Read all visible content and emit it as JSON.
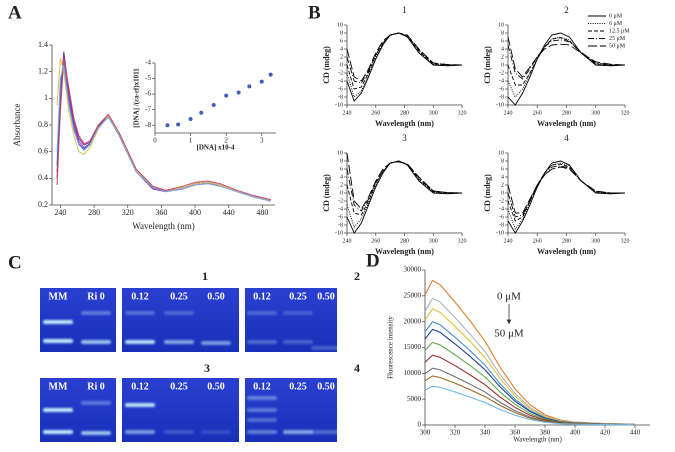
{
  "panel_labels": [
    "A",
    "B",
    "C",
    "D"
  ],
  "chart_data": [
    {
      "type": "line",
      "xlabel": "Wavelength (nm)",
      "ylabel": "Absorbance",
      "x": [
        236,
        240,
        244,
        250,
        256,
        262,
        268,
        275,
        285,
        297,
        310,
        330,
        350,
        365,
        385,
        400,
        415,
        430,
        450,
        470,
        490
      ],
      "xlim": [
        230,
        495
      ],
      "xticks": [
        240,
        280,
        320,
        360,
        400,
        440,
        480
      ],
      "ylim": [
        0.2,
        1.4
      ],
      "yticks": [
        0.2,
        0.4,
        0.6,
        0.8,
        1,
        1.2,
        1.4
      ],
      "series": [
        {
          "color": "#c03cc0",
          "style": "solid",
          "values": [
            0.45,
            1.05,
            1.32,
            1.02,
            0.8,
            0.68,
            0.63,
            0.66,
            0.78,
            0.87,
            0.73,
            0.46,
            0.33,
            0.3,
            0.33,
            0.36,
            0.37,
            0.35,
            0.3,
            0.26,
            0.23
          ]
        },
        {
          "color": "#7a2ea0",
          "style": "solid",
          "values": [
            0.4,
            1.0,
            1.35,
            1.05,
            0.82,
            0.7,
            0.65,
            0.67,
            0.79,
            0.87,
            0.72,
            0.45,
            0.32,
            0.3,
            0.32,
            0.35,
            0.36,
            0.35,
            0.3,
            0.26,
            0.23
          ]
        },
        {
          "color": "#4a5fc8",
          "style": "solid",
          "values": [
            0.5,
            1.1,
            1.28,
            0.98,
            0.78,
            0.66,
            0.62,
            0.66,
            0.78,
            0.86,
            0.72,
            0.45,
            0.33,
            0.31,
            0.33,
            0.36,
            0.37,
            0.35,
            0.3,
            0.26,
            0.23
          ]
        },
        {
          "color": "#d8c458",
          "style": "solid",
          "values": [
            0.95,
            1.3,
            1.2,
            0.9,
            0.72,
            0.6,
            0.58,
            0.63,
            0.77,
            0.87,
            0.73,
            0.46,
            0.34,
            0.31,
            0.33,
            0.36,
            0.37,
            0.35,
            0.3,
            0.26,
            0.23
          ]
        },
        {
          "color": "#c84860",
          "style": "solid",
          "values": [
            0.35,
            0.9,
            1.3,
            1.08,
            0.85,
            0.72,
            0.66,
            0.68,
            0.8,
            0.88,
            0.74,
            0.47,
            0.34,
            0.31,
            0.34,
            0.37,
            0.38,
            0.36,
            0.31,
            0.27,
            0.24
          ]
        },
        {
          "color": "#7fa6e0",
          "style": "solid",
          "values": [
            0.6,
            1.15,
            1.25,
            0.95,
            0.76,
            0.65,
            0.61,
            0.65,
            0.78,
            0.86,
            0.72,
            0.45,
            0.33,
            0.3,
            0.32,
            0.35,
            0.36,
            0.34,
            0.3,
            0.26,
            0.23
          ]
        }
      ]
    },
    {
      "type": "scatter",
      "xlabel": "[DNA] x10-4",
      "ylabel": "[DNA] /(εa-εf)x1011",
      "xlim": [
        0,
        3.4
      ],
      "xticks": [
        0,
        1,
        2,
        3
      ],
      "ylim": [
        -8.5,
        -4
      ],
      "yticks": [
        -8,
        -7,
        -6,
        -5,
        -4
      ],
      "series": [
        {
          "color": "#3f5fb8",
          "x": [
            0.35,
            0.65,
            1.0,
            1.3,
            1.65,
            2.0,
            2.35,
            2.65,
            3.0,
            3.25
          ],
          "values": [
            -8.0,
            -7.95,
            -7.6,
            -7.2,
            -6.7,
            -6.1,
            -5.9,
            -5.5,
            -5.2,
            -4.75
          ]
        }
      ]
    },
    {
      "type": "line",
      "title": "1",
      "xlabel": "Wavelength (nm)",
      "ylabel": "CD (mdeg)",
      "x": [
        240,
        245,
        250,
        255,
        260,
        265,
        270,
        276,
        282,
        290,
        300,
        310,
        320
      ],
      "xlim": [
        240,
        320
      ],
      "xticks": [
        240,
        260,
        280,
        300,
        320
      ],
      "ylim": [
        -10,
        10
      ],
      "yticks": [
        -10,
        -8,
        -6,
        -4,
        -2,
        0,
        2,
        4,
        6,
        8,
        10
      ],
      "legend": false,
      "series": [
        {
          "color": "#000000",
          "style": "solid",
          "values": [
            -4,
            -9,
            -7,
            -3,
            1.5,
            5,
            7.5,
            8,
            7,
            3,
            0,
            -0.2,
            0
          ]
        },
        {
          "color": "#000000",
          "style": "dotted",
          "values": [
            -2,
            -8,
            -6.5,
            -2.5,
            2,
            5.5,
            7.5,
            8,
            7,
            3.2,
            0.2,
            0,
            0
          ]
        },
        {
          "color": "#000000",
          "style": "dashed",
          "values": [
            0,
            -6,
            -5.5,
            -2,
            2.5,
            5.5,
            7.5,
            8,
            7.2,
            3.5,
            0.3,
            0,
            0
          ]
        },
        {
          "color": "#000000",
          "style": "dashdot",
          "values": [
            2,
            -4,
            -4.5,
            -1.5,
            2.5,
            5.5,
            7.5,
            8,
            7.3,
            3.8,
            0.5,
            0.1,
            0
          ]
        },
        {
          "color": "#000000",
          "style": "longdash",
          "values": [
            4,
            -3,
            -4,
            -1,
            3,
            6,
            7.5,
            8,
            7.5,
            4,
            0.5,
            0.1,
            0
          ]
        }
      ]
    },
    {
      "type": "line",
      "title": "2",
      "xlabel": "Wavelength (nm)",
      "ylabel": "CD (mdeg)",
      "x": [
        240,
        245,
        250,
        255,
        260,
        265,
        270,
        276,
        282,
        290,
        300,
        310,
        320
      ],
      "xlim": [
        240,
        320
      ],
      "xticks": [
        240,
        260,
        280,
        300,
        320
      ],
      "ylim": [
        -10,
        10
      ],
      "yticks": [
        -10,
        -8,
        -6,
        -4,
        -2,
        0,
        2,
        4,
        6,
        8,
        10
      ],
      "legend": true,
      "legend_position": "upper right",
      "series": [
        {
          "name": "0 μM",
          "color": "#000000",
          "style": "solid",
          "values": [
            -8,
            -10,
            -7,
            -3,
            1.5,
            5,
            7.5,
            8,
            7,
            3,
            0,
            -0.2,
            0
          ]
        },
        {
          "name": "6 μM",
          "color": "#000000",
          "style": "dotted",
          "values": [
            -4,
            -8,
            -6,
            -2.5,
            1.5,
            4.5,
            6.5,
            7,
            6.2,
            3,
            0.3,
            0,
            0
          ]
        },
        {
          "name": "12.5 μM",
          "color": "#000000",
          "style": "dashed",
          "values": [
            0,
            -5,
            -5,
            -2,
            1.5,
            4.5,
            6.5,
            6.8,
            6,
            3,
            0.3,
            0,
            0
          ]
        },
        {
          "name": "25 μM",
          "color": "#000000",
          "style": "dashdot",
          "values": [
            5,
            -2,
            -3.5,
            -1,
            2,
            4.5,
            6,
            6.3,
            5.8,
            3.2,
            0.5,
            0,
            0
          ]
        },
        {
          "name": "50 μM",
          "color": "#000000",
          "style": "longdash",
          "values": [
            7,
            -1,
            -3,
            -0.5,
            2,
            4,
            5,
            5.2,
            5,
            3,
            0.8,
            0.2,
            0
          ]
        }
      ]
    },
    {
      "type": "line",
      "title": "3",
      "xlabel": "Wavelength (nm)",
      "ylabel": "CD (mdeg)",
      "x": [
        240,
        245,
        250,
        255,
        260,
        265,
        270,
        276,
        282,
        290,
        300,
        310,
        320
      ],
      "xlim": [
        240,
        320
      ],
      "xticks": [
        240,
        260,
        280,
        300,
        320
      ],
      "ylim": [
        -10,
        10
      ],
      "yticks": [
        -10,
        -8,
        -6,
        -4,
        -2,
        0,
        2,
        4,
        6,
        8,
        10
      ],
      "legend": false,
      "series": [
        {
          "color": "#000000",
          "style": "solid",
          "values": [
            -6,
            -10,
            -7.5,
            -3,
            1.5,
            5,
            7.5,
            8,
            7,
            3,
            0,
            -0.2,
            0
          ]
        },
        {
          "color": "#000000",
          "style": "dotted",
          "values": [
            -3,
            -8.5,
            -6.5,
            -2.5,
            2,
            5.5,
            7.5,
            8,
            7,
            3.2,
            0.2,
            0,
            0
          ]
        },
        {
          "color": "#000000",
          "style": "dashed",
          "values": [
            2,
            -5,
            -5.5,
            -2,
            2.5,
            5.5,
            7.5,
            8,
            7.2,
            3.5,
            0.3,
            0,
            0
          ]
        },
        {
          "color": "#000000",
          "style": "dashdot",
          "values": [
            6,
            -3,
            -4.5,
            -1.5,
            2.5,
            5.5,
            7.5,
            7.8,
            7.2,
            3.8,
            0.5,
            0.1,
            0
          ]
        },
        {
          "color": "#000000",
          "style": "longdash",
          "values": [
            10,
            -2,
            -4,
            -1,
            3,
            6,
            7.5,
            7.8,
            7.3,
            4,
            0.5,
            0.1,
            0
          ]
        }
      ]
    },
    {
      "type": "line",
      "title": "4",
      "xlabel": "Wavelength (nm)",
      "ylabel": "CD (mdeg)",
      "x": [
        240,
        245,
        250,
        255,
        260,
        265,
        270,
        276,
        282,
        290,
        300,
        310,
        320
      ],
      "xlim": [
        240,
        320
      ],
      "xticks": [
        240,
        260,
        280,
        300,
        320
      ],
      "ylim": [
        -10,
        10
      ],
      "yticks": [
        -10,
        -8,
        -6,
        -4,
        -2,
        0,
        2,
        4,
        6,
        8,
        10
      ],
      "legend": false,
      "series": [
        {
          "color": "#000000",
          "style": "solid",
          "values": [
            -7,
            -10,
            -7,
            -3,
            1.5,
            5,
            7.5,
            8,
            7,
            3,
            0,
            -0.2,
            0
          ]
        },
        {
          "color": "#000000",
          "style": "dotted",
          "values": [
            -4,
            -9,
            -6.5,
            -2.5,
            1.5,
            5,
            7,
            7.5,
            6.8,
            3,
            0.2,
            0,
            0
          ]
        },
        {
          "color": "#000000",
          "style": "dashed",
          "values": [
            -2,
            -7,
            -6,
            -2,
            2,
            5,
            7,
            7.2,
            6.5,
            3,
            0.3,
            0,
            0
          ]
        },
        {
          "color": "#000000",
          "style": "dashdot",
          "values": [
            0,
            -6,
            -5.5,
            -2,
            2,
            4.5,
            6.5,
            6.8,
            6.2,
            3,
            0.4,
            0,
            0
          ]
        },
        {
          "color": "#000000",
          "style": "longdash",
          "values": [
            2,
            -5,
            -5,
            -1.5,
            2,
            4.5,
            6,
            6.5,
            6,
            3,
            0.5,
            0,
            0
          ]
        }
      ]
    },
    {
      "type": "line",
      "xlabel": "Wavelength (nm)",
      "ylabel": "Fluorescence intensity",
      "annotations": [
        "0 μM",
        "50 μM"
      ],
      "x": [
        300,
        305,
        310,
        320,
        330,
        340,
        350,
        360,
        370,
        380,
        390,
        400,
        420,
        440
      ],
      "xlim": [
        300,
        450
      ],
      "xticks": [
        300,
        320,
        340,
        360,
        380,
        400,
        420,
        440
      ],
      "ylim": [
        0,
        30000
      ],
      "yticks": [
        0,
        5000,
        10000,
        15000,
        20000,
        25000,
        30000
      ],
      "series": [
        {
          "color": "#e07b2a",
          "style": "solid",
          "values": [
            25200,
            28000,
            27160,
            23800,
            20160,
            16240,
            11200,
            7000,
            3920,
            1960,
            980,
            560,
            280,
            140
          ]
        },
        {
          "color": "#a9b4c0",
          "style": "solid",
          "values": [
            22000,
            24500,
            23800,
            20800,
            17600,
            14200,
            9800,
            6100,
            3400,
            1700,
            860,
            490,
            250,
            120
          ]
        },
        {
          "color": "#e8c040",
          "style": "solid",
          "values": [
            20250,
            22500,
            21800,
            19100,
            16200,
            13050,
            9000,
            5600,
            3150,
            1580,
            790,
            450,
            230,
            110
          ]
        },
        {
          "color": "#4a90d0",
          "style": "solid",
          "values": [
            18000,
            20000,
            19400,
            17000,
            14400,
            11600,
            8000,
            5000,
            2800,
            1400,
            700,
            400,
            200,
            100
          ]
        },
        {
          "color": "#1f3f8f",
          "style": "solid",
          "values": [
            16650,
            18500,
            17950,
            15700,
            13300,
            10700,
            7400,
            4600,
            2600,
            1300,
            650,
            370,
            190,
            90
          ]
        },
        {
          "color": "#5fae4a",
          "style": "solid",
          "values": [
            14400,
            16000,
            15500,
            13600,
            11500,
            9300,
            6400,
            4000,
            2240,
            1120,
            560,
            320,
            160,
            80
          ]
        },
        {
          "color": "#9c2f2f",
          "style": "solid",
          "values": [
            12150,
            13500,
            13100,
            11500,
            9700,
            7800,
            5400,
            3400,
            1900,
            950,
            470,
            270,
            140,
            70
          ]
        },
        {
          "color": "#6f6f6f",
          "style": "solid",
          "values": [
            9900,
            11000,
            10700,
            9350,
            7900,
            6400,
            4400,
            2750,
            1540,
            770,
            390,
            220,
            110,
            60
          ]
        },
        {
          "color": "#9a6a20",
          "style": "solid",
          "values": [
            8550,
            9500,
            9200,
            8100,
            6850,
            5500,
            3800,
            2400,
            1330,
            670,
            330,
            190,
            100,
            50
          ]
        },
        {
          "color": "#6fb8e8",
          "style": "solid",
          "values": [
            6750,
            7500,
            7300,
            6400,
            5400,
            4350,
            3000,
            1900,
            1050,
            530,
            260,
            150,
            80,
            40
          ]
        }
      ]
    }
  ],
  "gels": [
    {
      "lanes": [
        "MM",
        "Ri 0"
      ]
    },
    {
      "title": "1",
      "lanes": [
        "0.12",
        "0.25",
        "0.50"
      ]
    },
    {
      "title": "2",
      "lanes": [
        "0.12",
        "0.25",
        "0.50"
      ]
    },
    {
      "lanes": [
        "MM",
        "Ri 0"
      ]
    },
    {
      "title": "3",
      "lanes": [
        "0.12",
        "0.25",
        "0.50"
      ]
    },
    {
      "title": "4",
      "lanes": [
        "0.12",
        "0.25",
        "0.50"
      ]
    }
  ]
}
